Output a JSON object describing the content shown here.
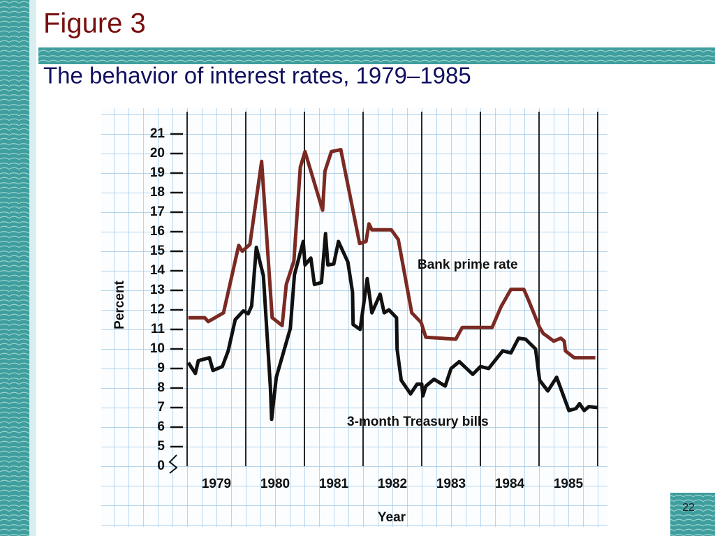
{
  "header": {
    "title": "Figure 3",
    "subtitle": "The behavior of interest rates, 1979–1985"
  },
  "page_number": "22",
  "chart_data": {
    "type": "line",
    "ylabel": "Percent",
    "xlabel": "Year",
    "ylim": [
      4,
      21.5
    ],
    "yticks": [
      5,
      6,
      7,
      8,
      9,
      10,
      11,
      12,
      13,
      14,
      15,
      16,
      17,
      18,
      19,
      20,
      21
    ],
    "ybreak_label": "0",
    "xlim": [
      1979,
      1986
    ],
    "xticks": [
      1979,
      1980,
      1981,
      1982,
      1983,
      1984,
      1985
    ],
    "grid": true,
    "series": [
      {
        "name": "Bank prime rate",
        "color": "#7a2a22",
        "x": [
          1979.02,
          1979.3,
          1979.36,
          1979.62,
          1979.88,
          1979.94,
          1980.07,
          1980.27,
          1980.45,
          1980.62,
          1980.69,
          1980.82,
          1980.93,
          1981.01,
          1981.31,
          1981.35,
          1981.46,
          1981.62,
          1981.94,
          1982.05,
          1982.1,
          1982.15,
          1982.48,
          1982.6,
          1982.83,
          1982.99,
          1983.07,
          1983.58,
          1983.69,
          1984.2,
          1984.35,
          1984.52,
          1984.74,
          1984.82,
          1985.01,
          1985.07,
          1985.25,
          1985.37,
          1985.43,
          1985.45,
          1985.6,
          1985.96
        ],
        "values": [
          11.6,
          11.6,
          11.4,
          11.85,
          15.3,
          15.0,
          15.35,
          19.6,
          11.6,
          11.2,
          13.3,
          14.5,
          19.3,
          20.1,
          17.1,
          19.1,
          20.1,
          20.2,
          15.4,
          15.5,
          16.4,
          16.1,
          16.1,
          15.6,
          11.85,
          11.35,
          10.6,
          10.5,
          11.1,
          11.1,
          12.15,
          13.05,
          13.05,
          12.5,
          11.1,
          10.8,
          10.4,
          10.55,
          10.4,
          9.9,
          9.55,
          9.55
        ]
      },
      {
        "name": "3-month Treasury bills",
        "color": "#111111",
        "x": [
          1979.02,
          1979.14,
          1979.19,
          1979.38,
          1979.44,
          1979.6,
          1979.7,
          1979.82,
          1979.96,
          1980.04,
          1980.1,
          1980.18,
          1980.3,
          1980.42,
          1980.44,
          1980.52,
          1980.76,
          1980.83,
          1980.98,
          1981.01,
          1981.11,
          1981.17,
          1981.29,
          1981.36,
          1981.4,
          1981.5,
          1981.58,
          1981.74,
          1981.82,
          1981.83,
          1981.95,
          1982.07,
          1982.15,
          1982.29,
          1982.36,
          1982.44,
          1982.57,
          1982.58,
          1982.65,
          1982.81,
          1982.92,
          1983.0,
          1983.02,
          1983.07,
          1983.21,
          1983.4,
          1983.5,
          1983.64,
          1983.87,
          1984.0,
          1984.14,
          1984.38,
          1984.52,
          1984.65,
          1984.77,
          1984.94,
          1985.01,
          1985.15,
          1985.3,
          1985.51,
          1985.63,
          1985.69,
          1985.77,
          1985.85,
          1986.0
        ],
        "values": [
          9.3,
          8.75,
          9.4,
          9.55,
          8.9,
          9.1,
          9.9,
          11.5,
          11.95,
          11.8,
          12.2,
          15.2,
          13.75,
          8.0,
          6.4,
          8.55,
          11.05,
          13.8,
          15.5,
          14.3,
          14.65,
          13.3,
          13.4,
          15.9,
          14.3,
          14.35,
          15.5,
          14.45,
          12.9,
          11.25,
          11.0,
          13.6,
          11.85,
          12.8,
          11.85,
          12.0,
          11.6,
          10.0,
          8.4,
          7.7,
          8.2,
          8.2,
          7.6,
          8.1,
          8.45,
          8.1,
          9.0,
          9.35,
          8.7,
          9.1,
          9.0,
          9.9,
          9.8,
          10.55,
          10.5,
          10.0,
          8.4,
          7.85,
          8.55,
          6.85,
          6.95,
          7.2,
          6.85,
          7.05,
          7.0
        ]
      }
    ]
  }
}
